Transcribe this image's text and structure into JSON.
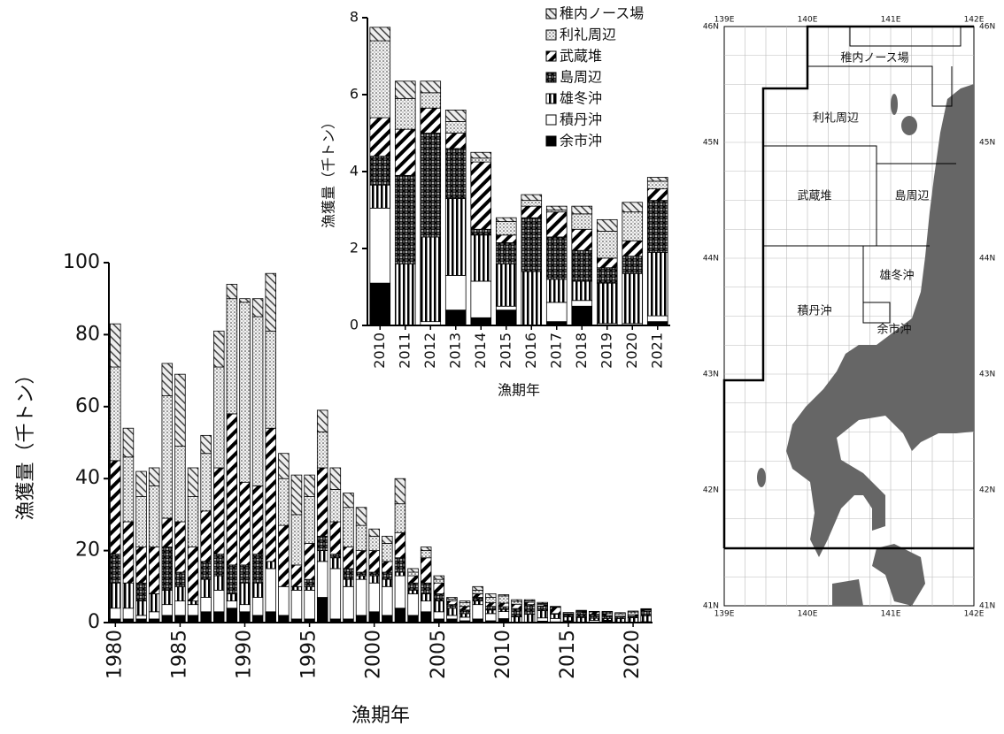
{
  "chart_data": [
    {
      "type": "stacked-bar",
      "y_label": "漁獲量（千トン）",
      "x_label": "漁期年",
      "x": [
        1980,
        1981,
        1982,
        1983,
        1984,
        1985,
        1986,
        1987,
        1988,
        1989,
        1990,
        1991,
        1992,
        1993,
        1994,
        1995,
        1996,
        1997,
        1998,
        1999,
        2000,
        2001,
        2002,
        2003,
        2004,
        2005,
        2006,
        2007,
        2008,
        2009,
        2010,
        2011,
        2012,
        2013,
        2014,
        2015,
        2016,
        2017,
        2018,
        2019,
        2020,
        2021
      ],
      "xlim": [
        1979.5,
        2021.5
      ],
      "xticks": [
        1980,
        1985,
        1990,
        1995,
        2000,
        2005,
        2010,
        2015,
        2020
      ],
      "ylim": [
        0,
        100
      ],
      "yticks": [
        0,
        20,
        40,
        60,
        80,
        100
      ],
      "series": [
        {
          "name": "余市沖",
          "pattern": "solid",
          "values": [
            1,
            1,
            1,
            1,
            2,
            2,
            2,
            3,
            3,
            4,
            3,
            2,
            3,
            2,
            1,
            1,
            7,
            1,
            1,
            2,
            3,
            2,
            4,
            2,
            3,
            1,
            1,
            0.5,
            1,
            0.5,
            1.1,
            0,
            0,
            0.4,
            0.2,
            0.4,
            0,
            0.1,
            0.5,
            0,
            0,
            0.1
          ]
        },
        {
          "name": "積丹沖",
          "pattern": "white",
          "values": [
            3,
            3,
            1,
            2,
            3,
            4,
            3,
            4,
            6,
            2,
            2,
            5,
            12,
            8,
            8,
            8,
            10,
            14,
            9,
            10,
            8,
            8,
            9,
            6,
            3,
            2,
            1,
            1,
            4,
            2,
            1.95,
            0,
            0.1,
            0.9,
            0.95,
            0.1,
            0,
            0.5,
            0.15,
            0.05,
            0.05,
            0.15
          ]
        },
        {
          "name": "雄冬沖",
          "pattern": "vlines",
          "values": [
            7,
            7,
            4,
            5,
            4,
            4,
            1,
            5,
            4,
            2,
            6,
            4,
            2,
            0,
            1,
            1,
            3,
            3,
            2,
            1,
            2,
            2,
            1,
            1,
            2,
            3,
            2,
            1,
            1,
            1,
            0.6,
            1.6,
            2.2,
            2,
            1.2,
            1.1,
            1.4,
            0.6,
            0.5,
            1.05,
            1.3,
            1.65
          ]
        },
        {
          "name": "島周辺",
          "pattern": "cross",
          "values": [
            8,
            0,
            5,
            0,
            12,
            4,
            0,
            5,
            6,
            8,
            5,
            8,
            0,
            0,
            0,
            2,
            4,
            1,
            3,
            1,
            1,
            2,
            4,
            2,
            3,
            2,
            1,
            1,
            1,
            1,
            0.75,
            2.3,
            2.7,
            1.3,
            0.15,
            0.55,
            1.4,
            1.1,
            0.8,
            0.4,
            0.45,
            1.35
          ]
        },
        {
          "name": "武蔵堆",
          "pattern": "diag",
          "values": [
            26,
            17,
            10,
            13,
            8,
            14,
            15,
            14,
            24,
            42,
            23,
            19,
            37,
            17,
            6,
            10,
            19,
            9,
            6,
            6,
            6,
            3,
            7,
            2,
            7,
            3,
            1,
            1,
            1,
            1,
            1,
            1.2,
            0.65,
            0.4,
            1.75,
            0.2,
            0.3,
            0.65,
            0.55,
            0.25,
            0.4,
            0.3
          ]
        },
        {
          "name": "利礼周辺",
          "pattern": "dots",
          "values": [
            26,
            18,
            14,
            17,
            34,
            21,
            14,
            16,
            28,
            32,
            50,
            47,
            27,
            13,
            14,
            13,
            10,
            9,
            11,
            7,
            4,
            5,
            8,
            1,
            2,
            1,
            0.5,
            1,
            1,
            1.5,
            2,
            0.8,
            0.4,
            0.3,
            0.1,
            0.35,
            0.15,
            0.05,
            0.4,
            0.7,
            0.75,
            0.2
          ]
        },
        {
          "name": "稚内ノース場",
          "pattern": "light",
          "values": [
            12,
            8,
            7,
            5,
            9,
            20,
            8,
            5,
            10,
            4,
            1,
            5,
            16,
            7,
            11,
            6,
            6,
            6,
            4,
            5,
            2,
            2,
            7,
            1,
            1,
            1,
            0.5,
            0.5,
            1,
            1,
            0.35,
            0.45,
            0.3,
            0.3,
            0.15,
            0.1,
            0.15,
            0.1,
            0.2,
            0.3,
            0.25,
            0.1
          ]
        }
      ]
    },
    {
      "type": "stacked-bar",
      "y_label": "漁獲量（千トン）",
      "x_label": "漁期年",
      "legend": "upper right",
      "x": [
        2010,
        2011,
        2012,
        2013,
        2014,
        2015,
        2016,
        2017,
        2018,
        2019,
        2020,
        2021
      ],
      "xlim": [
        2009.5,
        2021.5
      ],
      "xticks": [
        2010,
        2011,
        2012,
        2013,
        2014,
        2015,
        2016,
        2017,
        2018,
        2019,
        2020,
        2021
      ],
      "ylim": [
        0,
        8
      ],
      "yticks": [
        0,
        2,
        4,
        6,
        8
      ],
      "series": [
        {
          "name": "余市沖",
          "pattern": "solid",
          "values": [
            1.1,
            0,
            0,
            0.4,
            0.2,
            0.4,
            0,
            0.1,
            0.5,
            0,
            0,
            0.1
          ]
        },
        {
          "name": "積丹沖",
          "pattern": "white",
          "values": [
            1.95,
            0,
            0.1,
            0.9,
            0.95,
            0.1,
            0,
            0.5,
            0.15,
            0.05,
            0.05,
            0.15
          ]
        },
        {
          "name": "雄冬沖",
          "pattern": "vlines",
          "values": [
            0.6,
            1.6,
            2.2,
            2,
            1.2,
            1.1,
            1.4,
            0.6,
            0.5,
            1.05,
            1.3,
            1.65
          ]
        },
        {
          "name": "島周辺",
          "pattern": "cross",
          "values": [
            0.75,
            2.3,
            2.7,
            1.3,
            0.15,
            0.55,
            1.4,
            1.1,
            0.8,
            0.4,
            0.45,
            1.35
          ]
        },
        {
          "name": "武蔵堆",
          "pattern": "diag",
          "values": [
            1,
            1.2,
            0.65,
            0.4,
            1.75,
            0.2,
            0.3,
            0.65,
            0.55,
            0.25,
            0.4,
            0.3
          ]
        },
        {
          "name": "利礼周辺",
          "pattern": "dots",
          "values": [
            2,
            0.8,
            0.4,
            0.3,
            0.1,
            0.35,
            0.15,
            0.05,
            0.4,
            0.7,
            0.75,
            0.2
          ]
        },
        {
          "name": "稚内ノース場",
          "pattern": "light",
          "values": [
            0.35,
            0.45,
            0.3,
            0.3,
            0.15,
            0.1,
            0.15,
            0.1,
            0.2,
            0.3,
            0.25,
            0.1
          ]
        }
      ]
    }
  ],
  "map": {
    "regions": [
      "稚内ノース場",
      "利礼周辺",
      "武蔵堆",
      "島周辺",
      "雄冬沖",
      "積丹沖",
      "余市沖"
    ],
    "latitudes": [
      {
        "value": 46,
        "label": "46N"
      },
      {
        "value": 45,
        "label": "45N"
      },
      {
        "value": 44,
        "label": "44N"
      },
      {
        "value": 43,
        "label": "43N"
      },
      {
        "value": 42,
        "label": "42N"
      },
      {
        "value": 41,
        "label": "41N"
      }
    ],
    "longitudes": [
      {
        "value": 139,
        "label": "139E"
      },
      {
        "value": 140,
        "label": "140E"
      },
      {
        "value": 141,
        "label": "141E"
      },
      {
        "value": 142,
        "label": "142E"
      }
    ]
  }
}
